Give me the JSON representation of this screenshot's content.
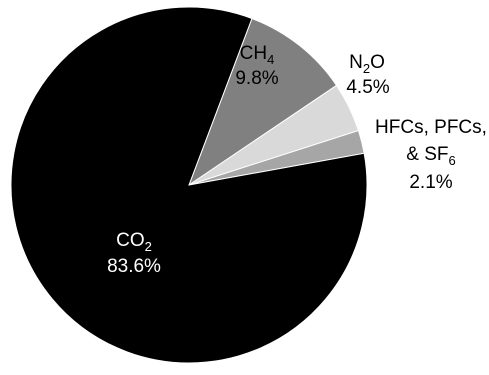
{
  "chart_data": {
    "type": "pie",
    "slices": [
      {
        "label_main": "CO",
        "label_sub": "2",
        "label_suffix": "",
        "label_line2": "",
        "value": 83.6,
        "value_text": "83.6%",
        "color": "#000000",
        "text_color": "#ffffff"
      },
      {
        "label_main": "CH",
        "label_sub": "4",
        "label_suffix": "",
        "label_line2": "",
        "value": 9.8,
        "value_text": "9.8%",
        "color": "#808080",
        "text_color": "#000000"
      },
      {
        "label_main": "N",
        "label_sub": "2",
        "label_suffix": "O",
        "label_line2": "",
        "value": 4.5,
        "value_text": "4.5%",
        "color": "#d9d9d9",
        "text_color": "#000000"
      },
      {
        "label_main": "HFCs, PFCs,",
        "label_sub": "",
        "label_suffix": "",
        "label_line2_main": "& SF",
        "label_line2_sub": "6",
        "value": 2.1,
        "value_text": "2.1%",
        "color": "#a6a6a6",
        "text_color": "#000000"
      }
    ]
  }
}
